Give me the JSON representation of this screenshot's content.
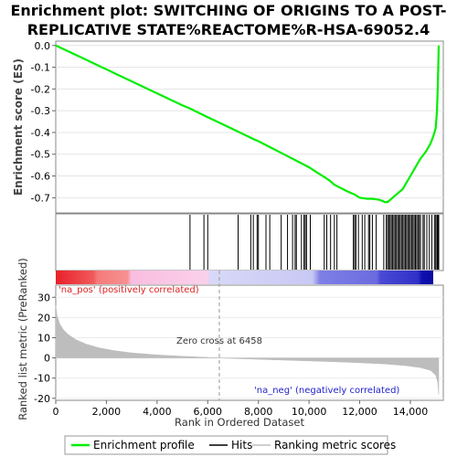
{
  "title_line1": "Enrichment plot: SWITCHING OF ORIGINS TO A POST-",
  "title_line2": "REPLICATIVE STATE%REACTOME%R-HSA-69052.4",
  "colors": {
    "es_line": "#00ee00",
    "hits": "#000000",
    "metric": "#bdbdbd",
    "pos_label": "#dd2222",
    "neg_label": "#2222cc"
  },
  "chart_data": [
    {
      "type": "line",
      "name": "enrichment-profile",
      "ylabel": "Enrichment score (ES)",
      "xlim": [
        0,
        15300
      ],
      "ylim": [
        -0.77,
        0.02
      ],
      "yticks": [
        0.0,
        -0.1,
        -0.2,
        -0.3,
        -0.4,
        -0.5,
        -0.6,
        -0.7
      ],
      "ytick_labels": [
        "0.0",
        "-0.1",
        "-0.2",
        "-0.3",
        "-0.4",
        "-0.5",
        "-0.6",
        "-0.7"
      ],
      "grid": true,
      "x": [
        0,
        1000,
        2000,
        3000,
        4000,
        5000,
        5300,
        6000,
        7000,
        7800,
        8000,
        8500,
        9000,
        9500,
        10000,
        10400,
        10600,
        10800,
        11000,
        11500,
        11800,
        12000,
        12300,
        12500,
        12800,
        13000,
        13100,
        13300,
        13500,
        13700,
        13800,
        13900,
        14000,
        14200,
        14400,
        14600,
        14700,
        14800,
        14900,
        15000,
        15050,
        15080,
        15100,
        15120
      ],
      "y": [
        0.0,
        -0.055,
        -0.11,
        -0.165,
        -0.22,
        -0.275,
        -0.29,
        -0.33,
        -0.385,
        -0.43,
        -0.44,
        -0.47,
        -0.5,
        -0.53,
        -0.56,
        -0.59,
        -0.605,
        -0.62,
        -0.64,
        -0.67,
        -0.685,
        -0.7,
        -0.705,
        -0.705,
        -0.71,
        -0.72,
        -0.72,
        -0.7,
        -0.68,
        -0.66,
        -0.64,
        -0.62,
        -0.6,
        -0.56,
        -0.52,
        -0.49,
        -0.47,
        -0.45,
        -0.42,
        -0.38,
        -0.3,
        -0.2,
        -0.1,
        0.0
      ]
    },
    {
      "type": "hits",
      "name": "hits",
      "positions": [
        5300,
        5850,
        6000,
        7200,
        7700,
        7800,
        7950,
        8000,
        8300,
        8450,
        8900,
        9150,
        9350,
        9450,
        9500,
        9700,
        9800,
        9850,
        9900,
        10050,
        10600,
        10700,
        10850,
        11000,
        11100,
        11750,
        11800,
        11850,
        11950,
        12100,
        12200,
        12350,
        12400,
        12500,
        12650,
        12950,
        13050,
        13100,
        13150,
        13200,
        13250,
        13300,
        13350,
        13400,
        13450,
        13500,
        13550,
        13600,
        13650,
        13700,
        13750,
        13800,
        13850,
        13900,
        13950,
        14000,
        14050,
        14100,
        14150,
        14200,
        14250,
        14300,
        14350,
        14400,
        14500,
        14550,
        14650,
        14750,
        14850,
        14950,
        15000,
        15050,
        15080,
        15100,
        15120
      ]
    },
    {
      "type": "area",
      "name": "ranked-list-metric",
      "ylabel": "Ranked list metric (PreRanked)",
      "xlabel": "Rank in Ordered Dataset",
      "xlim": [
        0,
        15300
      ],
      "ylim": [
        -21,
        36
      ],
      "xticks": [
        0,
        2000,
        4000,
        6000,
        8000,
        10000,
        12000,
        14000
      ],
      "xtick_labels": [
        "0",
        "2,000",
        "4,000",
        "6,000",
        "8,000",
        "10,000",
        "12,000",
        "14,000"
      ],
      "yticks": [
        30,
        20,
        10,
        0,
        -10,
        -20
      ],
      "ytick_labels": [
        "30",
        "20",
        "10",
        "0",
        "-10",
        "-20"
      ],
      "zero_cross": 6458,
      "zero_cross_label": "Zero cross at 6458",
      "pos_label": "'na_pos' (positively correlated)",
      "neg_label": "'na_neg' (negatively correlated)",
      "x": [
        0,
        50,
        150,
        300,
        500,
        800,
        1200,
        1700,
        2300,
        3000,
        4000,
        5000,
        6000,
        6458,
        7000,
        8000,
        9000,
        10000,
        11000,
        12000,
        13000,
        13800,
        14400,
        14800,
        15000,
        15080,
        15120
      ],
      "y": [
        26,
        21,
        17,
        14,
        11.5,
        9,
        6.8,
        5,
        3.6,
        2.5,
        1.5,
        0.8,
        0.25,
        0,
        -0.3,
        -0.7,
        -1.1,
        -1.5,
        -1.9,
        -2.4,
        -3.0,
        -3.8,
        -4.8,
        -6.2,
        -8.5,
        -12,
        -18
      ]
    }
  ],
  "legend": {
    "items": [
      "Enrichment profile",
      "Hits",
      "Ranking metric scores"
    ]
  }
}
